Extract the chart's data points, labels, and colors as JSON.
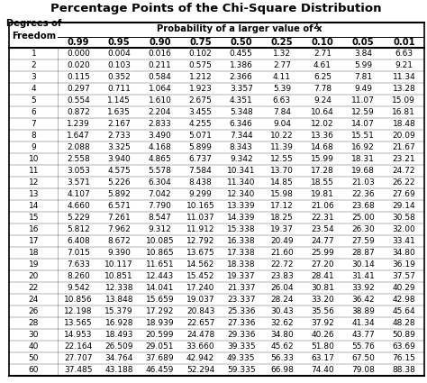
{
  "title": "Percentage Points of the Chi-Square Distribution",
  "col_headers": [
    "0.99",
    "0.95",
    "0.90",
    "0.75",
    "0.50",
    "0.25",
    "0.10",
    "0.05",
    "0.01"
  ],
  "row_labels": [
    "1",
    "2",
    "3",
    "4",
    "5",
    "6",
    "7",
    "8",
    "9",
    "10",
    "11",
    "12",
    "13",
    "14",
    "15",
    "16",
    "17",
    "18",
    "19",
    "20",
    "22",
    "24",
    "26",
    "28",
    "30",
    "40",
    "50",
    "60"
  ],
  "header_row1": "Degrees of",
  "header_row2": "Freedom",
  "prob_label": "Probability of a larger value of x",
  "table_data": [
    [
      "0.000",
      "0.004",
      "0.016",
      "0.102",
      "0.455",
      "1.32",
      "2.71",
      "3.84",
      "6.63"
    ],
    [
      "0.020",
      "0.103",
      "0.211",
      "0.575",
      "1.386",
      "2.77",
      "4.61",
      "5.99",
      "9.21"
    ],
    [
      "0.115",
      "0.352",
      "0.584",
      "1.212",
      "2.366",
      "4.11",
      "6.25",
      "7.81",
      "11.34"
    ],
    [
      "0.297",
      "0.711",
      "1.064",
      "1.923",
      "3.357",
      "5.39",
      "7.78",
      "9.49",
      "13.28"
    ],
    [
      "0.554",
      "1.145",
      "1.610",
      "2.675",
      "4.351",
      "6.63",
      "9.24",
      "11.07",
      "15.09"
    ],
    [
      "0.872",
      "1.635",
      "2.204",
      "3.455",
      "5.348",
      "7.84",
      "10.64",
      "12.59",
      "16.81"
    ],
    [
      "1.239",
      "2.167",
      "2.833",
      "4.255",
      "6.346",
      "9.04",
      "12.02",
      "14.07",
      "18.48"
    ],
    [
      "1.647",
      "2.733",
      "3.490",
      "5.071",
      "7.344",
      "10.22",
      "13.36",
      "15.51",
      "20.09"
    ],
    [
      "2.088",
      "3.325",
      "4.168",
      "5.899",
      "8.343",
      "11.39",
      "14.68",
      "16.92",
      "21.67"
    ],
    [
      "2.558",
      "3.940",
      "4.865",
      "6.737",
      "9.342",
      "12.55",
      "15.99",
      "18.31",
      "23.21"
    ],
    [
      "3.053",
      "4.575",
      "5.578",
      "7.584",
      "10.341",
      "13.70",
      "17.28",
      "19.68",
      "24.72"
    ],
    [
      "3.571",
      "5.226",
      "6.304",
      "8.438",
      "11.340",
      "14.85",
      "18.55",
      "21.03",
      "26.22"
    ],
    [
      "4.107",
      "5.892",
      "7.042",
      "9.299",
      "12.340",
      "15.98",
      "19.81",
      "22.36",
      "27.69"
    ],
    [
      "4.660",
      "6.571",
      "7.790",
      "10.165",
      "13.339",
      "17.12",
      "21.06",
      "23.68",
      "29.14"
    ],
    [
      "5.229",
      "7.261",
      "8.547",
      "11.037",
      "14.339",
      "18.25",
      "22.31",
      "25.00",
      "30.58"
    ],
    [
      "5.812",
      "7.962",
      "9.312",
      "11.912",
      "15.338",
      "19.37",
      "23.54",
      "26.30",
      "32.00"
    ],
    [
      "6.408",
      "8.672",
      "10.085",
      "12.792",
      "16.338",
      "20.49",
      "24.77",
      "27.59",
      "33.41"
    ],
    [
      "7.015",
      "9.390",
      "10.865",
      "13.675",
      "17.338",
      "21.60",
      "25.99",
      "28.87",
      "34.80"
    ],
    [
      "7.633",
      "10.117",
      "11.651",
      "14.562",
      "18.338",
      "22.72",
      "27.20",
      "30.14",
      "36.19"
    ],
    [
      "8.260",
      "10.851",
      "12.443",
      "15.452",
      "19.337",
      "23.83",
      "28.41",
      "31.41",
      "37.57"
    ],
    [
      "9.542",
      "12.338",
      "14.041",
      "17.240",
      "21.337",
      "26.04",
      "30.81",
      "33.92",
      "40.29"
    ],
    [
      "10.856",
      "13.848",
      "15.659",
      "19.037",
      "23.337",
      "28.24",
      "33.20",
      "36.42",
      "42.98"
    ],
    [
      "12.198",
      "15.379",
      "17.292",
      "20.843",
      "25.336",
      "30.43",
      "35.56",
      "38.89",
      "45.64"
    ],
    [
      "13.565",
      "16.928",
      "18.939",
      "22.657",
      "27.336",
      "32.62",
      "37.92",
      "41.34",
      "48.28"
    ],
    [
      "14.953",
      "18.493",
      "20.599",
      "24.478",
      "29.336",
      "34.80",
      "40.26",
      "43.77",
      "50.89"
    ],
    [
      "22.164",
      "26.509",
      "29.051",
      "33.660",
      "39.335",
      "45.62",
      "51.80",
      "55.76",
      "63.69"
    ],
    [
      "27.707",
      "34.764",
      "37.689",
      "42.942",
      "49.335",
      "56.33",
      "63.17",
      "67.50",
      "76.15"
    ],
    [
      "37.485",
      "43.188",
      "46.459",
      "52.294",
      "59.335",
      "66.98",
      "74.40",
      "79.08",
      "88.38"
    ]
  ],
  "bg_color": "#ffffff",
  "header_bg": "#ffffff",
  "border_color": "#000000",
  "text_color": "#000000",
  "title_fontsize": 9.5,
  "header_fontsize": 7.2,
  "cell_fontsize": 6.5
}
